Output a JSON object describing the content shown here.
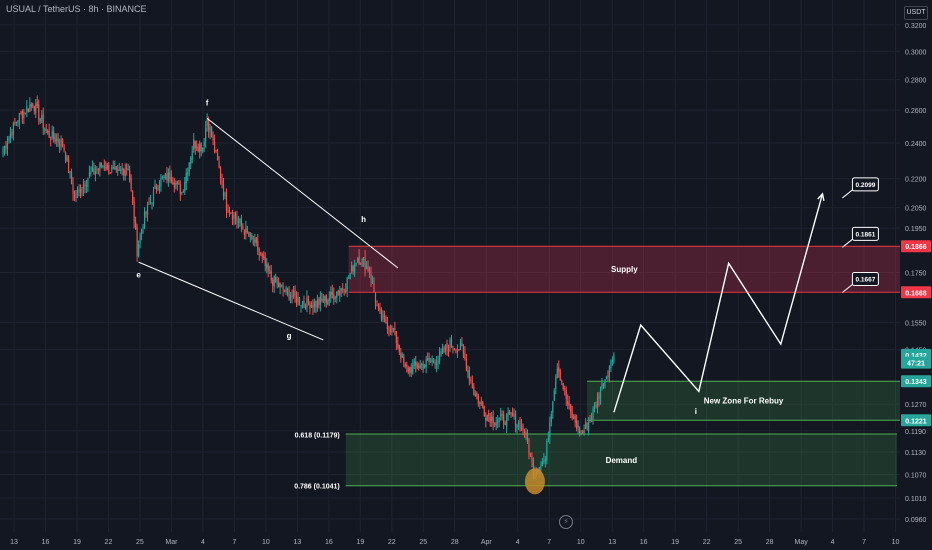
{
  "header": {
    "title": "USUAL / TetherUS · 8h · BINANCE",
    "currency": "USDT"
  },
  "flash_icon": "lightning-icon",
  "colors": {
    "background": "#131722",
    "grid": "#1f2330",
    "bull": "#26a69a",
    "bear": "#ef5350",
    "supply_zone": "#f2365640",
    "supply_line": "#f23645",
    "demand_zone": "#4caf5033",
    "demand_line": "#4caf50",
    "projection": "#ffffff"
  },
  "chart_data": {
    "type": "candlestick",
    "title": "USUAL / TetherUS · 8h · BINANCE",
    "y_axis": {
      "scale": "log",
      "range": [
        0.093,
        0.34
      ],
      "ticks": [
        0.32,
        0.3,
        0.28,
        0.26,
        0.24,
        0.22,
        0.205,
        0.195,
        0.175,
        0.155,
        0.145,
        0.127,
        0.119,
        0.113,
        0.107,
        0.101,
        0.096
      ],
      "tick_labels": [
        "0.3200",
        "0.3000",
        "0.2800",
        "0.2600",
        "0.2400",
        "0.2200",
        "0.2050",
        "0.1950",
        "0.1750",
        "0.1550",
        "0.1450",
        "0.1270",
        "0.1190",
        "0.1130",
        "0.1070",
        "0.1010",
        "0.0960"
      ]
    },
    "x_axis": {
      "ticks": [
        "13",
        "16",
        "19",
        "22",
        "25",
        "Mar",
        "4",
        "7",
        "10",
        "13",
        "16",
        "19",
        "22",
        "25",
        "28",
        "Apr",
        "4",
        "7",
        "10",
        "13",
        "16",
        "19",
        "22",
        "25",
        "28",
        "May",
        "4",
        "7",
        "10"
      ]
    },
    "price_labels": [
      {
        "text": "0.1866",
        "value": 0.1866,
        "color": "#f23645"
      },
      {
        "text": "0.1668",
        "value": 0.1668,
        "color": "#f23645"
      },
      {
        "text": "0.1432",
        "value": 0.1432,
        "color": "#26a69a"
      },
      {
        "text": "47:21",
        "value": 0.1405,
        "color": "#26a69a"
      },
      {
        "text": "0.1343",
        "value": 0.1343,
        "color": "#26a69a"
      },
      {
        "text": "0.1221",
        "value": 0.1221,
        "color": "#26a69a"
      }
    ],
    "zones": [
      {
        "label": "Supply",
        "top": 0.1866,
        "bottom": 0.1668,
        "start_index": 232,
        "end": "right",
        "kind": "supply"
      },
      {
        "label": "New Zone For Rebuy",
        "top": 0.1343,
        "bottom": 0.1221,
        "start_index": 392,
        "end": "right",
        "kind": "demand"
      },
      {
        "label": "Demand",
        "top": 0.1181,
        "bottom": 0.1041,
        "start_index": 230,
        "end_index": 600,
        "kind": "demand"
      }
    ],
    "fib_levels": [
      {
        "label": "0.618 (0.1179)",
        "value": 0.1179
      },
      {
        "label": "0.786 (0.1041)",
        "value": 0.1041
      }
    ],
    "wave_labels": [
      {
        "text": "e",
        "index": 91,
        "value": 0.173
      },
      {
        "text": "f",
        "index": 137,
        "value": 0.263
      },
      {
        "text": "g",
        "index": 192,
        "value": 0.149
      },
      {
        "text": "h",
        "index": 242,
        "value": 0.198
      },
      {
        "text": "i",
        "index": 465,
        "value": 0.124
      }
    ],
    "channel_lines": [
      {
        "from": {
          "index": 137,
          "value": 0.2548
        },
        "to": {
          "index": 265,
          "value": 0.177
        }
      },
      {
        "from": {
          "index": 91,
          "value": 0.1795
        },
        "to": {
          "index": 215,
          "value": 0.1485
        }
      }
    ],
    "projection_path": [
      {
        "index": 410,
        "value": 0.1245
      },
      {
        "index": 428,
        "value": 0.154
      },
      {
        "index": 467,
        "value": 0.131
      },
      {
        "index": 487,
        "value": 0.179
      },
      {
        "index": 522,
        "value": 0.147
      },
      {
        "index": 550,
        "value": 0.212
      }
    ],
    "projection_targets": [
      {
        "label": "0.2099",
        "value": 0.2099,
        "index": 560
      },
      {
        "label": "0.1861",
        "value": 0.1861,
        "index": 560
      },
      {
        "label": "0.1667",
        "value": 0.1667,
        "index": 560
      }
    ],
    "highlight_circle": {
      "index": 357,
      "value": 0.1052
    },
    "waypoints": [
      [
        0,
        0.236
      ],
      [
        10,
        0.255
      ],
      [
        20,
        0.265
      ],
      [
        30,
        0.245
      ],
      [
        40,
        0.24
      ],
      [
        48,
        0.21
      ],
      [
        58,
        0.222
      ],
      [
        68,
        0.228
      ],
      [
        76,
        0.222
      ],
      [
        84,
        0.227
      ],
      [
        90,
        0.185
      ],
      [
        94,
        0.198
      ],
      [
        104,
        0.218
      ],
      [
        112,
        0.222
      ],
      [
        120,
        0.213
      ],
      [
        128,
        0.24
      ],
      [
        134,
        0.238
      ],
      [
        137,
        0.255
      ],
      [
        142,
        0.236
      ],
      [
        150,
        0.206
      ],
      [
        160,
        0.196
      ],
      [
        170,
        0.186
      ],
      [
        180,
        0.172
      ],
      [
        190,
        0.167
      ],
      [
        200,
        0.163
      ],
      [
        210,
        0.162
      ],
      [
        220,
        0.165
      ],
      [
        230,
        0.17
      ],
      [
        238,
        0.182
      ],
      [
        246,
        0.176
      ],
      [
        252,
        0.158
      ],
      [
        262,
        0.152
      ],
      [
        270,
        0.138
      ],
      [
        282,
        0.14
      ],
      [
        292,
        0.142
      ],
      [
        300,
        0.147
      ],
      [
        308,
        0.145
      ],
      [
        316,
        0.131
      ],
      [
        324,
        0.124
      ],
      [
        332,
        0.122
      ],
      [
        342,
        0.123
      ],
      [
        350,
        0.119
      ],
      [
        356,
        0.108
      ],
      [
        364,
        0.111
      ],
      [
        372,
        0.14
      ],
      [
        380,
        0.125
      ],
      [
        388,
        0.118
      ],
      [
        394,
        0.122
      ],
      [
        400,
        0.13
      ],
      [
        406,
        0.138
      ],
      [
        410,
        0.1432
      ]
    ]
  }
}
